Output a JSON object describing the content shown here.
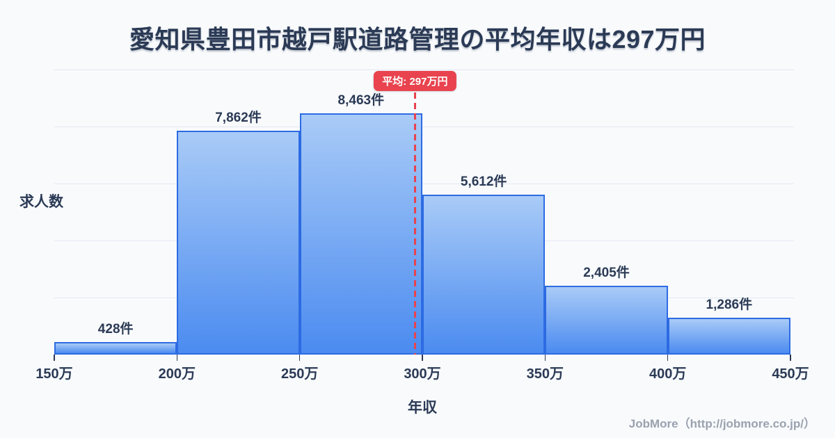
{
  "title": "愛知県豊田市越戸駅道路管理の平均年収は297万円",
  "footer": "JobMore（http://jobmore.co.jp/）",
  "colors": {
    "background": "#f8fafc",
    "text_navy": "#2b3a55",
    "bar_fill_top": "#a9cbf7",
    "bar_fill_bottom": "#4b8bf0",
    "bar_border": "#2d6be3",
    "gridline": "#e3e8f1",
    "mean_red": "#e8434e",
    "footer_gray": "#9aa2ae"
  },
  "chart_data": {
    "type": "bar",
    "title": "愛知県豊田市越戸駅道路管理の平均年収は297万円",
    "categories": [
      "150万-200万",
      "200万-250万",
      "250万-300万",
      "300万-350万",
      "350万-400万",
      "400万-450万"
    ],
    "values": [
      428,
      7862,
      8463,
      5612,
      2405,
      1286
    ],
    "value_labels": [
      "428件",
      "7,862件",
      "8,463件",
      "5,612件",
      "2,405件",
      "1,286件"
    ],
    "x_tick_labels": [
      "150万",
      "200万",
      "250万",
      "300万",
      "350万",
      "400万",
      "450万"
    ],
    "xlabel": "年収",
    "ylabel": "求人数",
    "x_range": [
      150,
      450
    ],
    "ylim": [
      0,
      10000
    ],
    "gridline_step": 2000,
    "grid": true,
    "legend": false,
    "mean": {
      "value": 297,
      "label": "平均: 297万円"
    }
  }
}
